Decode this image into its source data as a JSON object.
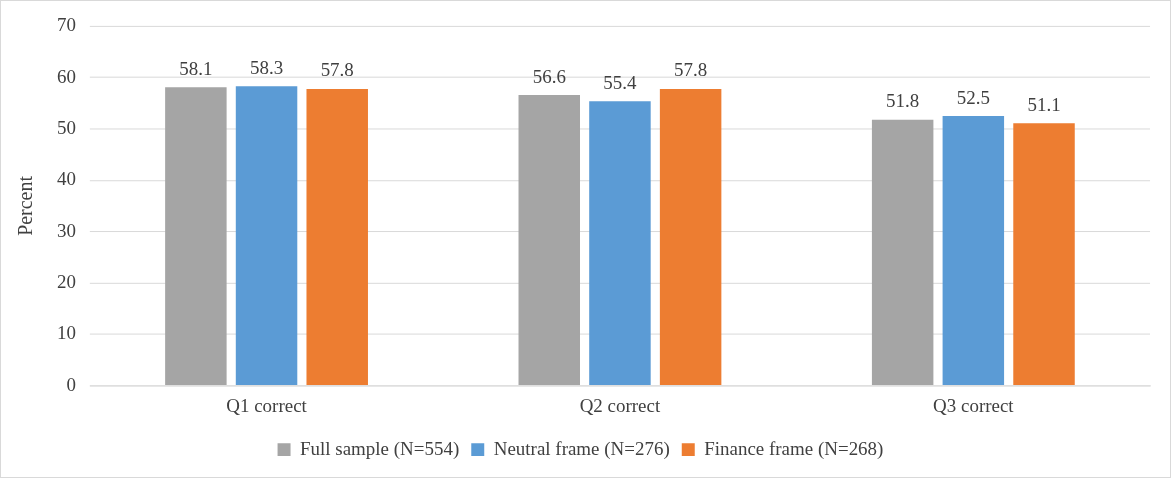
{
  "chart_data": {
    "type": "bar",
    "ylabel": "Percent",
    "categories": [
      "Q1 correct",
      "Q2 correct",
      "Q3 correct"
    ],
    "series": [
      {
        "name": "Full sample (N=554)",
        "color": "#a5a5a5",
        "values": [
          58.1,
          56.6,
          51.8
        ]
      },
      {
        "name": "Neutral frame (N=276)",
        "color": "#5b9bd5",
        "values": [
          58.3,
          55.4,
          52.5
        ]
      },
      {
        "name": "Finance frame (N=268)",
        "color": "#ed7d31",
        "values": [
          57.8,
          57.8,
          51.1
        ]
      }
    ],
    "ylim": [
      0,
      70
    ],
    "yticks": [
      0,
      10,
      20,
      30,
      40,
      50,
      60,
      70
    ],
    "grid": "y",
    "legend": "bottom",
    "data_labels": true
  }
}
